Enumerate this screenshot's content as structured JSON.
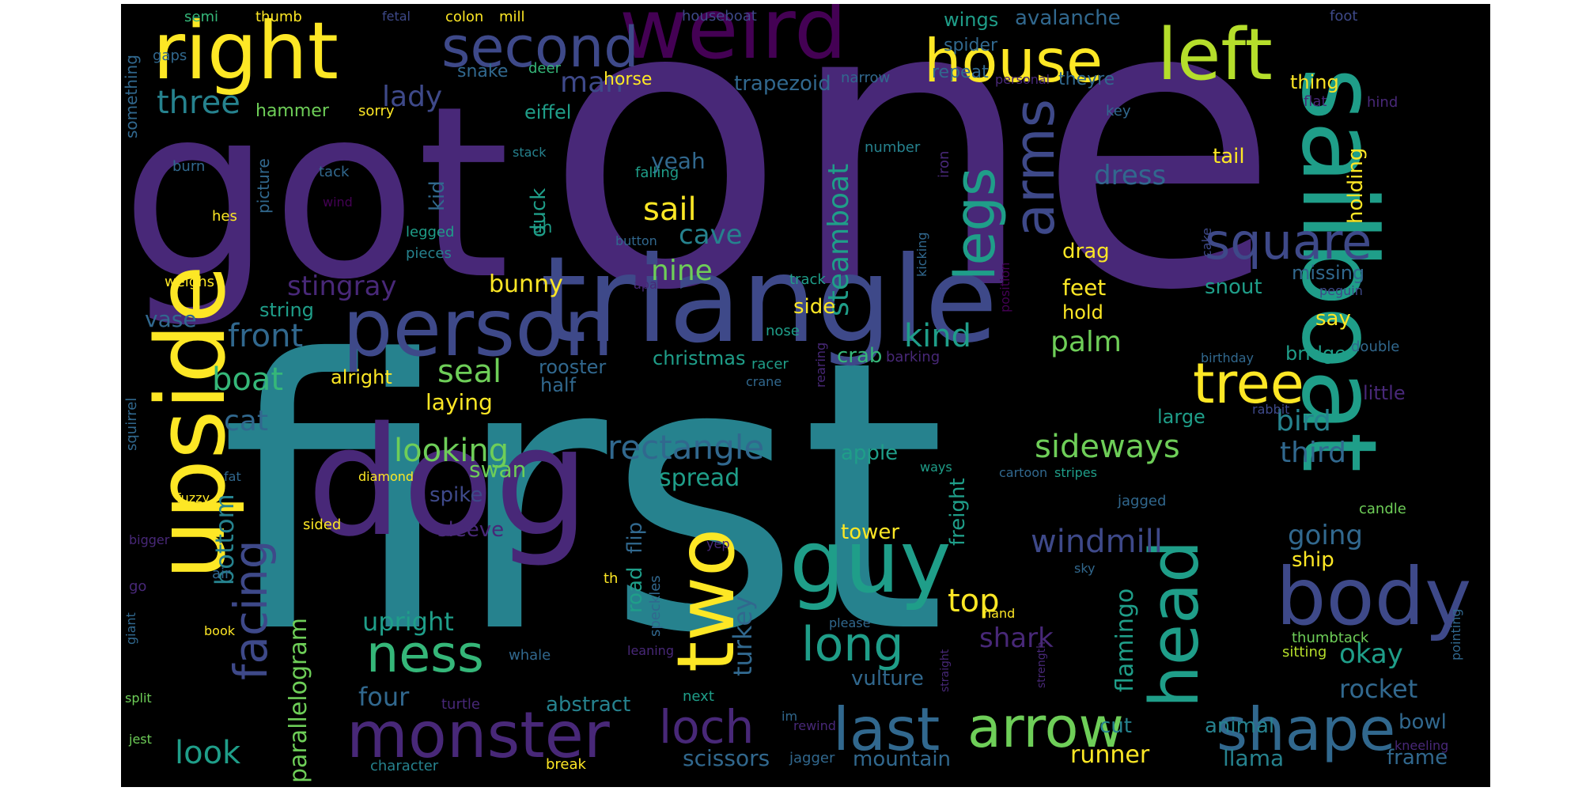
{
  "palette": {
    "purple": "#440154",
    "indigo": "#482878",
    "blue": "#3e4989",
    "slate": "#31688e",
    "teal": "#26828e",
    "cyan": "#1f9e89",
    "green": "#35b779",
    "lime": "#6ece58",
    "chartreuse": "#b5de2b",
    "yellow": "#fde725"
  },
  "words": [
    {
      "text": "one",
      "color": "indigo"
    },
    {
      "text": "first",
      "color": "teal"
    },
    {
      "text": "got",
      "color": "indigo"
    },
    {
      "text": "triangle",
      "color": "blue"
    },
    {
      "text": "dog",
      "color": "indigo"
    },
    {
      "text": "sailboat",
      "color": "cyan"
    },
    {
      "text": "upside",
      "color": "yellow"
    },
    {
      "text": "weird",
      "color": "purple"
    },
    {
      "text": "right",
      "color": "yellow"
    },
    {
      "text": "left",
      "color": "chartreuse"
    },
    {
      "text": "house",
      "color": "yellow"
    },
    {
      "text": "second",
      "color": "blue"
    },
    {
      "text": "person",
      "color": "blue"
    },
    {
      "text": "guy",
      "color": "cyan"
    },
    {
      "text": "body",
      "color": "blue"
    },
    {
      "text": "head",
      "color": "cyan"
    },
    {
      "text": "two",
      "color": "yellow"
    },
    {
      "text": "monster",
      "color": "indigo"
    },
    {
      "text": "shape",
      "color": "slate"
    },
    {
      "text": "last",
      "color": "slate"
    },
    {
      "text": "arrow",
      "color": "lime"
    },
    {
      "text": "square",
      "color": "blue"
    },
    {
      "text": "legs",
      "color": "cyan"
    },
    {
      "text": "arms",
      "color": "blue"
    },
    {
      "text": "tree",
      "color": "yellow"
    },
    {
      "text": "loch",
      "color": "indigo"
    },
    {
      "text": "facing",
      "color": "blue"
    },
    {
      "text": "ness",
      "color": "green"
    },
    {
      "text": "long",
      "color": "cyan"
    },
    {
      "text": "rectangle",
      "color": "slate"
    },
    {
      "text": "three",
      "color": "teal"
    },
    {
      "text": "lady",
      "color": "blue"
    },
    {
      "text": "man",
      "color": "blue"
    },
    {
      "text": "sideways",
      "color": "lime"
    },
    {
      "text": "looking",
      "color": "lime"
    },
    {
      "text": "windmill",
      "color": "blue"
    },
    {
      "text": "boat",
      "color": "green"
    },
    {
      "text": "front",
      "color": "slate"
    },
    {
      "text": "stingray",
      "color": "indigo"
    },
    {
      "text": "sail",
      "color": "yellow"
    },
    {
      "text": "cave",
      "color": "teal"
    },
    {
      "text": "nine",
      "color": "lime"
    },
    {
      "text": "kind",
      "color": "cyan"
    },
    {
      "text": "palm",
      "color": "lime"
    },
    {
      "text": "steamboat",
      "color": "cyan"
    },
    {
      "text": "seal",
      "color": "lime"
    },
    {
      "text": "bird",
      "color": "teal"
    },
    {
      "text": "third",
      "color": "slate"
    },
    {
      "text": "cat",
      "color": "slate"
    },
    {
      "text": "look",
      "color": "cyan"
    },
    {
      "text": "dress",
      "color": "slate"
    },
    {
      "text": "bottom",
      "color": "teal"
    },
    {
      "text": "parallelogram",
      "color": "lime"
    },
    {
      "text": "upright",
      "color": "cyan"
    },
    {
      "text": "four",
      "color": "slate"
    },
    {
      "text": "shark",
      "color": "indigo"
    },
    {
      "text": "top",
      "color": "yellow"
    },
    {
      "text": "going",
      "color": "slate"
    },
    {
      "text": "rocket",
      "color": "slate"
    },
    {
      "text": "okay",
      "color": "cyan"
    },
    {
      "text": "flamingo",
      "color": "cyan"
    },
    {
      "text": "turkey",
      "color": "slate"
    },
    {
      "text": "runner",
      "color": "yellow"
    },
    {
      "text": "llama",
      "color": "teal"
    },
    {
      "text": "scissors",
      "color": "slate"
    },
    {
      "text": "abstract",
      "color": "teal"
    },
    {
      "text": "mountain",
      "color": "slate"
    },
    {
      "text": "animal",
      "color": "teal"
    },
    {
      "text": "frame",
      "color": "slate"
    },
    {
      "text": "bowl",
      "color": "slate"
    },
    {
      "text": "cut",
      "color": "teal"
    },
    {
      "text": "vulture",
      "color": "slate"
    },
    {
      "text": "tower",
      "color": "yellow"
    },
    {
      "text": "ship",
      "color": "yellow"
    },
    {
      "text": "freight",
      "color": "cyan"
    },
    {
      "text": "spread",
      "color": "cyan"
    },
    {
      "text": "swan",
      "color": "lime"
    },
    {
      "text": "sleeve",
      "color": "indigo"
    },
    {
      "text": "spike",
      "color": "blue"
    },
    {
      "text": "apple",
      "color": "cyan"
    },
    {
      "text": "crab",
      "color": "green"
    },
    {
      "text": "christmas",
      "color": "cyan"
    },
    {
      "text": "rooster",
      "color": "slate"
    },
    {
      "text": "half",
      "color": "slate"
    },
    {
      "text": "alright",
      "color": "yellow"
    },
    {
      "text": "laying",
      "color": "yellow"
    },
    {
      "text": "bunny",
      "color": "yellow"
    },
    {
      "text": "string",
      "color": "cyan"
    },
    {
      "text": "vase",
      "color": "slate"
    },
    {
      "text": "duck",
      "color": "cyan"
    },
    {
      "text": "kid",
      "color": "slate"
    },
    {
      "text": "yeah",
      "color": "slate"
    },
    {
      "text": "side",
      "color": "yellow"
    },
    {
      "text": "feet",
      "color": "yellow"
    },
    {
      "text": "hold",
      "color": "yellow"
    },
    {
      "text": "drag",
      "color": "yellow"
    },
    {
      "text": "tail",
      "color": "yellow"
    },
    {
      "text": "holding",
      "color": "yellow"
    },
    {
      "text": "missing",
      "color": "slate"
    },
    {
      "text": "snout",
      "color": "cyan"
    },
    {
      "text": "say",
      "color": "yellow"
    },
    {
      "text": "bridge",
      "color": "cyan"
    },
    {
      "text": "little",
      "color": "indigo"
    },
    {
      "text": "large",
      "color": "cyan"
    },
    {
      "text": "avalanche",
      "color": "slate"
    },
    {
      "text": "wings",
      "color": "cyan"
    },
    {
      "text": "spider",
      "color": "slate"
    },
    {
      "text": "repeat",
      "color": "slate"
    },
    {
      "text": "theyre",
      "color": "slate"
    },
    {
      "text": "thing",
      "color": "yellow"
    },
    {
      "text": "trapezoid",
      "color": "slate"
    },
    {
      "text": "horse",
      "color": "yellow"
    },
    {
      "text": "eiffel",
      "color": "cyan"
    },
    {
      "text": "snake",
      "color": "slate"
    },
    {
      "text": "hammer",
      "color": "lime"
    },
    {
      "text": "sorry",
      "color": "yellow"
    },
    {
      "text": "deer",
      "color": "green"
    },
    {
      "text": "gaps",
      "color": "slate"
    },
    {
      "text": "something",
      "color": "slate"
    },
    {
      "text": "semi",
      "color": "green"
    },
    {
      "text": "thumb",
      "color": "yellow"
    },
    {
      "text": "fetal",
      "color": "blue"
    },
    {
      "text": "colon",
      "color": "yellow"
    },
    {
      "text": "mill",
      "color": "yellow"
    },
    {
      "text": "houseboat",
      "color": "blue"
    },
    {
      "text": "foot",
      "color": "blue"
    },
    {
      "text": "narrow",
      "color": "slate"
    },
    {
      "text": "personal",
      "color": "indigo"
    },
    {
      "text": "flat",
      "color": "indigo"
    },
    {
      "text": "hind",
      "color": "indigo"
    },
    {
      "text": "key",
      "color": "slate"
    },
    {
      "text": "stack",
      "color": "teal"
    },
    {
      "text": "falling",
      "color": "cyan"
    },
    {
      "text": "number",
      "color": "teal"
    },
    {
      "text": "iron",
      "color": "indigo"
    },
    {
      "text": "burn",
      "color": "slate"
    },
    {
      "text": "tack",
      "color": "slate"
    },
    {
      "text": "wind",
      "color": "purple"
    },
    {
      "text": "picture",
      "color": "slate"
    },
    {
      "text": "hes",
      "color": "yellow"
    },
    {
      "text": "legged",
      "color": "cyan"
    },
    {
      "text": "button",
      "color": "slate"
    },
    {
      "text": "uh",
      "color": "cyan"
    },
    {
      "text": "pieces",
      "color": "teal"
    },
    {
      "text": "weighs",
      "color": "yellow"
    },
    {
      "text": "apart",
      "color": "indigo"
    },
    {
      "text": "track",
      "color": "cyan"
    },
    {
      "text": "kicking",
      "color": "slate"
    },
    {
      "text": "position",
      "color": "purple"
    },
    {
      "text": "cake",
      "color": "blue"
    },
    {
      "text": "peguin",
      "color": "blue"
    },
    {
      "text": "nose",
      "color": "cyan"
    },
    {
      "text": "rearing",
      "color": "indigo"
    },
    {
      "text": "barking",
      "color": "indigo"
    },
    {
      "text": "crane",
      "color": "slate"
    },
    {
      "text": "racer",
      "color": "cyan"
    },
    {
      "text": "birthday",
      "color": "slate"
    },
    {
      "text": "double",
      "color": "slate"
    },
    {
      "text": "rabbit",
      "color": "blue"
    },
    {
      "text": "squirrel",
      "color": "slate"
    },
    {
      "text": "ways",
      "color": "cyan"
    },
    {
      "text": "cartoon",
      "color": "slate"
    },
    {
      "text": "stripes",
      "color": "cyan"
    },
    {
      "text": "fat",
      "color": "slate"
    },
    {
      "text": "fuzzy",
      "color": "yellow"
    },
    {
      "text": "diamond",
      "color": "yellow"
    },
    {
      "text": "sided",
      "color": "yellow"
    },
    {
      "text": "bigger",
      "color": "indigo"
    },
    {
      "text": "air",
      "color": "slate"
    },
    {
      "text": "go",
      "color": "indigo"
    },
    {
      "text": "giant",
      "color": "slate"
    },
    {
      "text": "book",
      "color": "yellow"
    },
    {
      "text": "split",
      "color": "lime"
    },
    {
      "text": "jest",
      "color": "lime"
    },
    {
      "text": "character",
      "color": "teal"
    },
    {
      "text": "break",
      "color": "yellow"
    },
    {
      "text": "jagger",
      "color": "slate"
    },
    {
      "text": "rewind",
      "color": "indigo"
    },
    {
      "text": "im",
      "color": "slate"
    },
    {
      "text": "next",
      "color": "cyan"
    },
    {
      "text": "turtle",
      "color": "indigo"
    },
    {
      "text": "whale",
      "color": "slate"
    },
    {
      "text": "leaning",
      "color": "indigo"
    },
    {
      "text": "please",
      "color": "slate"
    },
    {
      "text": "straight",
      "color": "indigo"
    },
    {
      "text": "strength",
      "color": "indigo"
    },
    {
      "text": "hand",
      "color": "yellow"
    },
    {
      "text": "yep",
      "color": "indigo"
    },
    {
      "text": "th",
      "color": "yellow"
    },
    {
      "text": "speckles",
      "color": "slate"
    },
    {
      "text": "flip",
      "color": "slate"
    },
    {
      "text": "road",
      "color": "cyan"
    },
    {
      "text": "sky",
      "color": "slate"
    },
    {
      "text": "jagged",
      "color": "slate"
    },
    {
      "text": "candle",
      "color": "lime"
    },
    {
      "text": "thumbtack",
      "color": "lime"
    },
    {
      "text": "sitting",
      "color": "chartreuse"
    },
    {
      "text": "pointing",
      "color": "slate"
    },
    {
      "text": "kneeling",
      "color": "indigo"
    }
  ]
}
